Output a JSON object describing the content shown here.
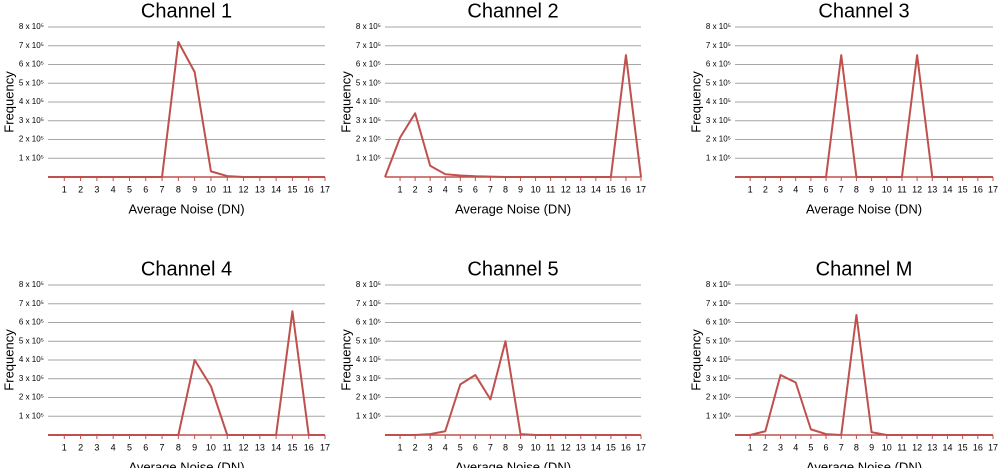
{
  "chart_data": [
    {
      "type": "line",
      "title": "Channel 1",
      "xlabel": "Average Noise (DN)",
      "ylabel": "Frequency",
      "color": "#c0504d",
      "grid": true,
      "x": [
        0,
        1,
        2,
        3,
        4,
        5,
        6,
        7,
        8,
        9,
        10,
        11,
        12,
        13,
        14,
        15,
        16,
        17
      ],
      "values": [
        0,
        0,
        0,
        0,
        0,
        0,
        0,
        0,
        720000,
        560000,
        30000,
        5000,
        0,
        0,
        0,
        0,
        0,
        0
      ],
      "xlim": [
        0,
        17
      ],
      "xticks": [
        1,
        2,
        3,
        4,
        5,
        6,
        7,
        8,
        9,
        10,
        11,
        12,
        13,
        14,
        15,
        16,
        17
      ],
      "ylim": [
        0,
        800000
      ],
      "yticks": [
        {
          "value": 100000,
          "label": "1 x 10⁵"
        },
        {
          "value": 200000,
          "label": "2 x 10⁵"
        },
        {
          "value": 300000,
          "label": "3 x 10⁵"
        },
        {
          "value": 400000,
          "label": "4 x 10⁵"
        },
        {
          "value": 500000,
          "label": "5 x 10⁵"
        },
        {
          "value": 600000,
          "label": "6 x 10⁵"
        },
        {
          "value": 700000,
          "label": "7 x 10⁵"
        },
        {
          "value": 800000,
          "label": "8 x 10⁵"
        }
      ]
    },
    {
      "type": "line",
      "title": "Channel 2",
      "xlabel": "Average Noise (DN)",
      "ylabel": "Frequency",
      "color": "#c0504d",
      "grid": true,
      "x": [
        0,
        1,
        2,
        3,
        4,
        5,
        6,
        7,
        8,
        9,
        10,
        11,
        12,
        13,
        14,
        15,
        16,
        17
      ],
      "values": [
        0,
        210000,
        340000,
        60000,
        15000,
        8000,
        4000,
        2000,
        0,
        0,
        0,
        0,
        0,
        0,
        0,
        0,
        650000,
        0
      ],
      "xlim": [
        0,
        17
      ],
      "xticks": [
        1,
        2,
        3,
        4,
        5,
        6,
        7,
        8,
        9,
        10,
        11,
        12,
        13,
        14,
        15,
        16,
        17
      ],
      "ylim": [
        0,
        800000
      ],
      "yticks": [
        {
          "value": 100000,
          "label": "1 x 10⁵"
        },
        {
          "value": 200000,
          "label": "2 x 10⁵"
        },
        {
          "value": 300000,
          "label": "3 x 10⁵"
        },
        {
          "value": 400000,
          "label": "4 x 10⁵"
        },
        {
          "value": 500000,
          "label": "5 x 10⁵"
        },
        {
          "value": 600000,
          "label": "6 x 10⁵"
        },
        {
          "value": 700000,
          "label": "7 x 10⁵"
        },
        {
          "value": 800000,
          "label": "8 x 10⁵"
        }
      ]
    },
    {
      "type": "line",
      "title": "Channel 3",
      "xlabel": "Average Noise (DN)",
      "ylabel": "Frequency",
      "color": "#c0504d",
      "grid": true,
      "x": [
        0,
        1,
        2,
        3,
        4,
        5,
        6,
        7,
        8,
        9,
        10,
        11,
        12,
        13,
        14,
        15,
        16,
        17
      ],
      "values": [
        0,
        0,
        0,
        0,
        0,
        0,
        0,
        650000,
        0,
        0,
        0,
        0,
        650000,
        0,
        0,
        0,
        0,
        0
      ],
      "xlim": [
        0,
        17
      ],
      "xticks": [
        1,
        2,
        3,
        4,
        5,
        6,
        7,
        8,
        9,
        10,
        11,
        12,
        13,
        14,
        15,
        16,
        17
      ],
      "ylim": [
        0,
        800000
      ],
      "yticks": [
        {
          "value": 100000,
          "label": "1 x 10⁵"
        },
        {
          "value": 200000,
          "label": "2 x 10⁵"
        },
        {
          "value": 300000,
          "label": "3 x 10⁵"
        },
        {
          "value": 400000,
          "label": "4 x 10⁵"
        },
        {
          "value": 500000,
          "label": "5 x 10⁵"
        },
        {
          "value": 600000,
          "label": "6 x 10⁵"
        },
        {
          "value": 700000,
          "label": "7 x 10⁵"
        },
        {
          "value": 800000,
          "label": "8 x 10⁵"
        }
      ]
    },
    {
      "type": "line",
      "title": "Channel 4",
      "xlabel": "Average Noise (DN)",
      "ylabel": "Frequency",
      "color": "#c0504d",
      "grid": true,
      "x": [
        0,
        1,
        2,
        3,
        4,
        5,
        6,
        7,
        8,
        9,
        10,
        11,
        12,
        13,
        14,
        15,
        16,
        17
      ],
      "values": [
        0,
        0,
        0,
        0,
        0,
        0,
        0,
        0,
        0,
        400000,
        260000,
        0,
        0,
        0,
        0,
        660000,
        0,
        0
      ],
      "xlim": [
        0,
        17
      ],
      "xticks": [
        1,
        2,
        3,
        4,
        5,
        6,
        7,
        8,
        9,
        10,
        11,
        12,
        13,
        14,
        15,
        16,
        17
      ],
      "ylim": [
        0,
        800000
      ],
      "yticks": [
        {
          "value": 100000,
          "label": "1 x 10⁵"
        },
        {
          "value": 200000,
          "label": "2 x 10⁵"
        },
        {
          "value": 300000,
          "label": "3 x 10⁵"
        },
        {
          "value": 400000,
          "label": "4 x 10⁵"
        },
        {
          "value": 500000,
          "label": "5 x 10⁵"
        },
        {
          "value": 600000,
          "label": "6 x 10⁵"
        },
        {
          "value": 700000,
          "label": "7 x 10⁵"
        },
        {
          "value": 800000,
          "label": "8 x 10⁵"
        }
      ]
    },
    {
      "type": "line",
      "title": "Channel 5",
      "xlabel": "Average Noise (DN)",
      "ylabel": "Frequency",
      "color": "#c0504d",
      "grid": true,
      "x": [
        0,
        1,
        2,
        3,
        4,
        5,
        6,
        7,
        8,
        9,
        10,
        11,
        12,
        13,
        14,
        15,
        16,
        17
      ],
      "values": [
        0,
        0,
        0,
        5000,
        20000,
        270000,
        320000,
        190000,
        500000,
        5000,
        0,
        0,
        0,
        0,
        0,
        0,
        0,
        0
      ],
      "xlim": [
        0,
        17
      ],
      "xticks": [
        1,
        2,
        3,
        4,
        5,
        6,
        7,
        8,
        9,
        10,
        11,
        12,
        13,
        14,
        15,
        16,
        17
      ],
      "ylim": [
        0,
        800000
      ],
      "yticks": [
        {
          "value": 100000,
          "label": "1 x 10⁵"
        },
        {
          "value": 200000,
          "label": "2 x 10⁵"
        },
        {
          "value": 300000,
          "label": "3 x 10⁵"
        },
        {
          "value": 400000,
          "label": "4 x 10⁵"
        },
        {
          "value": 500000,
          "label": "5 x 10⁵"
        },
        {
          "value": 600000,
          "label": "6 x 10⁵"
        },
        {
          "value": 700000,
          "label": "7 x 10⁵"
        },
        {
          "value": 800000,
          "label": "8 x 10⁵"
        }
      ]
    },
    {
      "type": "line",
      "title": "Channel M",
      "xlabel": "Average Noise (DN)",
      "ylabel": "Frequency",
      "color": "#c0504d",
      "grid": true,
      "x": [
        0,
        1,
        2,
        3,
        4,
        5,
        6,
        7,
        8,
        9,
        10,
        11,
        12,
        13,
        14,
        15,
        16,
        17
      ],
      "values": [
        0,
        0,
        20000,
        320000,
        280000,
        30000,
        5000,
        0,
        640000,
        15000,
        0,
        0,
        0,
        0,
        0,
        0,
        0,
        0
      ],
      "xlim": [
        0,
        17
      ],
      "xticks": [
        1,
        2,
        3,
        4,
        5,
        6,
        7,
        8,
        9,
        10,
        11,
        12,
        13,
        14,
        15,
        16,
        17
      ],
      "ylim": [
        0,
        800000
      ],
      "yticks": [
        {
          "value": 100000,
          "label": "1 x 10⁵"
        },
        {
          "value": 200000,
          "label": "2 x 10⁵"
        },
        {
          "value": 300000,
          "label": "3 x 10⁵"
        },
        {
          "value": 400000,
          "label": "4 x 10⁵"
        },
        {
          "value": 500000,
          "label": "5 x 10⁵"
        },
        {
          "value": 600000,
          "label": "6 x 10⁵"
        },
        {
          "value": 700000,
          "label": "7 x 10⁵"
        },
        {
          "value": 800000,
          "label": "8 x 10⁵"
        }
      ]
    }
  ]
}
